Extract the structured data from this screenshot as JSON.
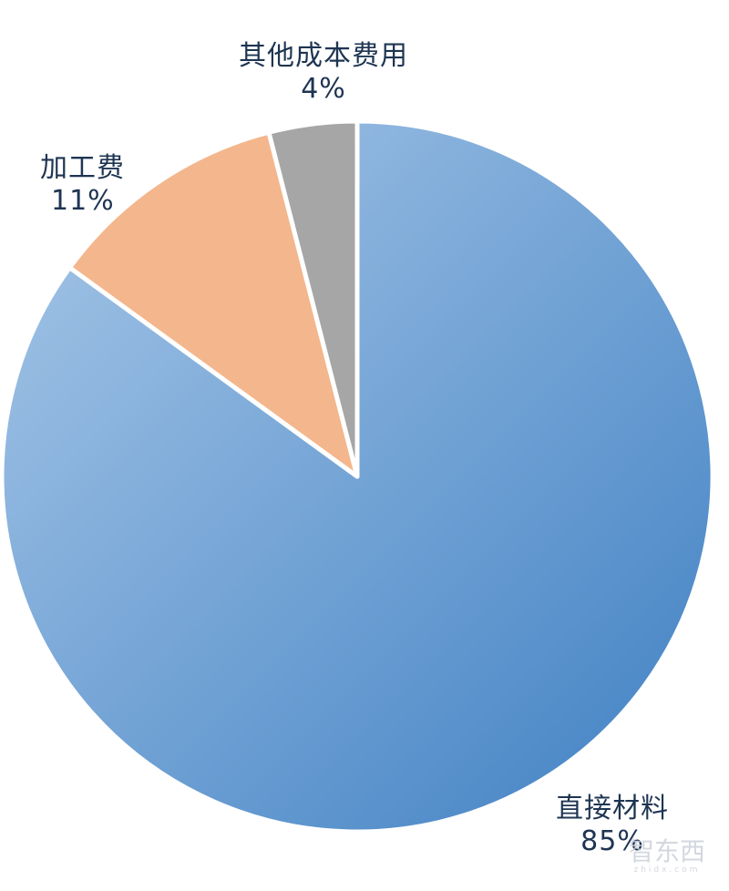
{
  "chart_data": {
    "type": "pie",
    "start_angle": "12 o'clock",
    "direction": "clockwise",
    "slices": [
      {
        "label": "直接材料",
        "value": 85,
        "value_label": "85%",
        "color": "#5b9bd5",
        "gradient": [
          "#a9c8e8",
          "#3f80c3"
        ]
      },
      {
        "label": "加工费",
        "value": 11,
        "value_label": "11%",
        "color": "#f4b68c"
      },
      {
        "label": "其他成本费用",
        "value": 4,
        "value_label": "4%",
        "color": "#a6a6a6"
      }
    ],
    "separator_color": "#ffffff",
    "label_color": "#1e3552"
  },
  "watermark": {
    "text": "智东西",
    "sub": "zhidx.com"
  }
}
